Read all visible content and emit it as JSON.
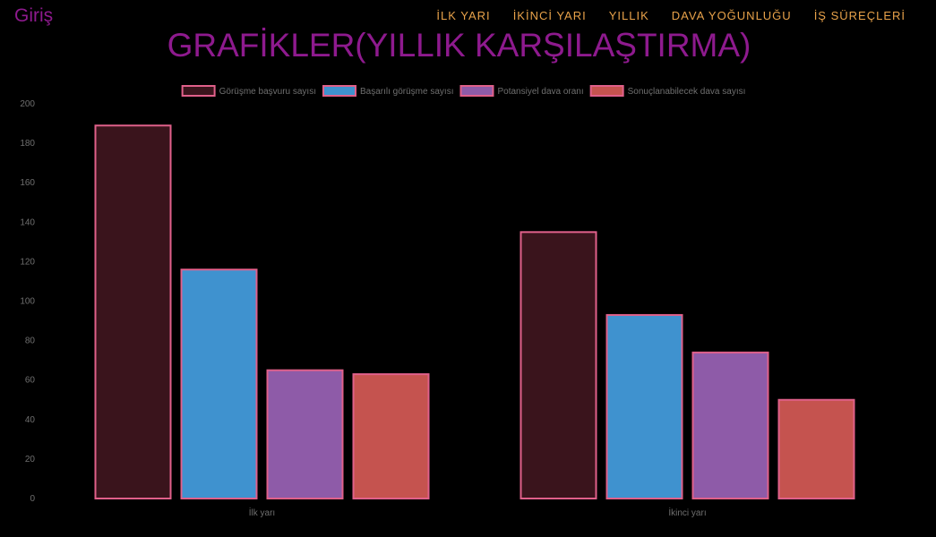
{
  "navbar": {
    "brand": "Giriş",
    "links": [
      "İLK YARI",
      "İKİNCİ YARI",
      "YILLIK",
      "DAVA YOĞUNLUĞU",
      "İŞ SÜREÇLERİ"
    ]
  },
  "page_title": "GRAFİKLER(YILLIK KARŞILAŞTIRMA)",
  "colors": {
    "background": "#000000",
    "title": "#8e1a8e",
    "nav_link": "#e8a24a",
    "border": "#e0608a"
  },
  "chart_data": {
    "type": "bar",
    "categories": [
      "İlk yarı",
      "İkinci yarı"
    ],
    "series": [
      {
        "name": "Görüşme başvuru sayısı",
        "values": [
          189,
          135
        ],
        "fill": "#3a141c",
        "stroke": "#e0608a"
      },
      {
        "name": "Başarılı görüşme sayısı",
        "values": [
          116,
          93
        ],
        "fill": "#3f92cf",
        "stroke": "#e0608a"
      },
      {
        "name": "Potansiyel dava oranı",
        "values": [
          65,
          74
        ],
        "fill": "#8e5ba8",
        "stroke": "#e0608a"
      },
      {
        "name": "Sonuçlanabilecek dava sayısı",
        "values": [
          63,
          50
        ],
        "fill": "#c5534f",
        "stroke": "#e0608a"
      }
    ],
    "ylim": [
      0,
      200
    ],
    "yticks": [
      0,
      20,
      40,
      60,
      80,
      100,
      120,
      140,
      160,
      180,
      200
    ],
    "legend_position": "top",
    "grid": false
  }
}
